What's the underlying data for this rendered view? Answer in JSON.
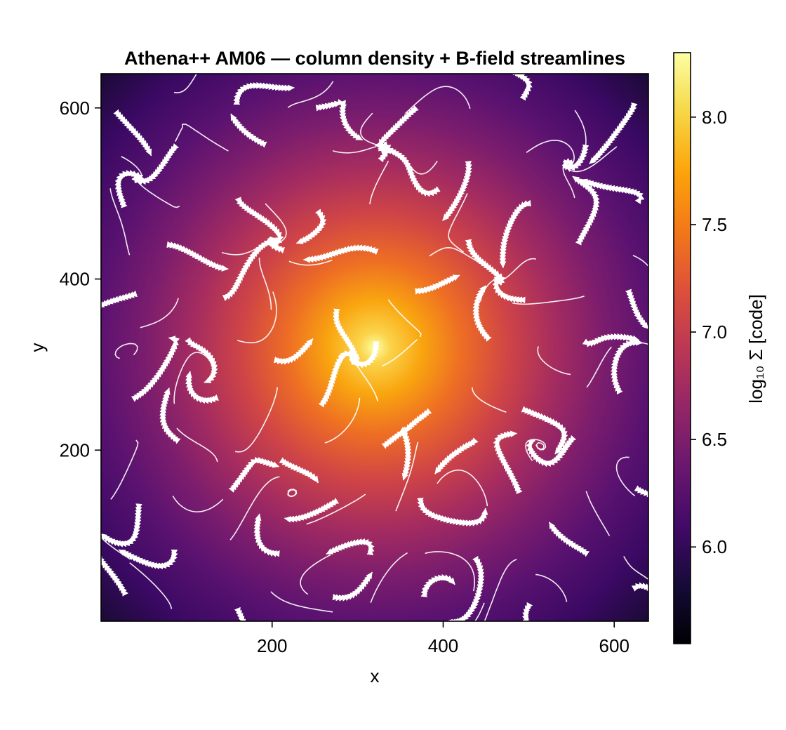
{
  "chart_data": {
    "type": "heatmap",
    "title": "Athena++ AM06 — column density + B-field streamlines",
    "xlabel": "x",
    "ylabel": "y",
    "xlim": [
      0,
      640
    ],
    "ylim": [
      0,
      640
    ],
    "x_ticks": [
      200,
      400,
      600
    ],
    "y_ticks": [
      200,
      400,
      600
    ],
    "x_tick_labels": [
      "200",
      "400",
      "600"
    ],
    "y_tick_labels": [
      "200",
      "400",
      "600"
    ],
    "colorbar": {
      "label": "log₁₀ Σ  [code]",
      "colormap": "inferno",
      "range": [
        5.55,
        8.3
      ],
      "ticks": [
        6.0,
        6.5,
        7.0,
        7.5,
        8.0
      ],
      "tick_labels": [
        "6.0",
        "6.5",
        "7.0",
        "7.5",
        "8.0"
      ]
    },
    "density_peak": {
      "x": 320,
      "y": 320,
      "value": 8.25
    },
    "background_level": 6.05,
    "overlay": {
      "type": "streamlines",
      "color": "#ffffff",
      "quantity": "B-field"
    }
  }
}
